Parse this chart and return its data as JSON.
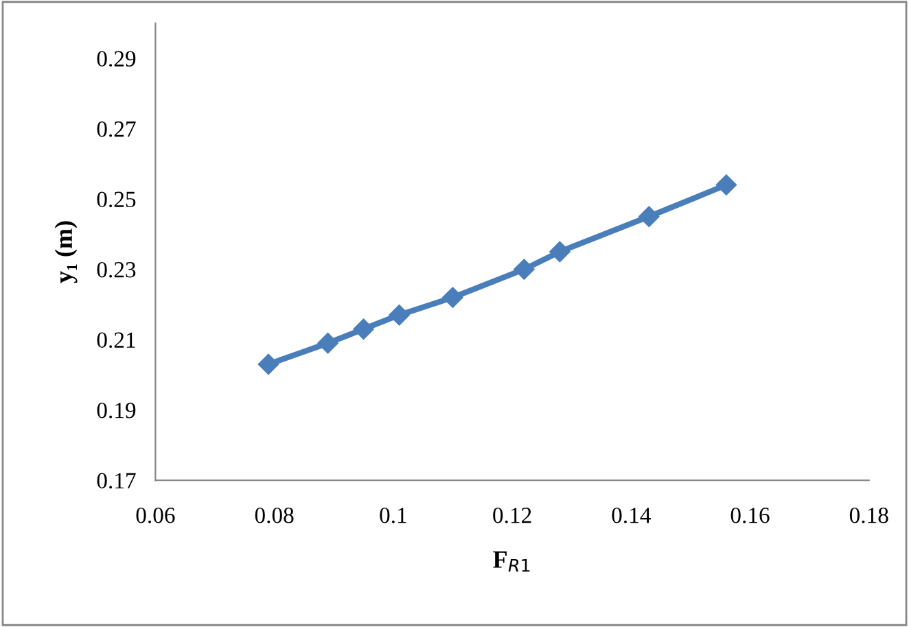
{
  "chart_data": {
    "type": "line",
    "xlabel": "F$_{R1}$",
    "ylabel": "y₁ (m)",
    "x": [
      0.079,
      0.089,
      0.095,
      0.101,
      0.11,
      0.122,
      0.128,
      0.143,
      0.156
    ],
    "series": [
      {
        "color": "#4a7ebb",
        "values": [
          0.203,
          0.209,
          0.213,
          0.217,
          0.222,
          0.23,
          0.235,
          0.245,
          0.254
        ]
      }
    ],
    "xlim": [
      0.06,
      0.18
    ],
    "xticks": [
      0.06,
      0.08,
      0.1,
      0.12,
      0.14,
      0.16,
      0.18
    ],
    "ylim": [
      0.17,
      0.3
    ],
    "yticks": [
      0.17,
      0.19,
      0.21,
      0.23,
      0.25,
      0.27,
      0.29
    ],
    "marker": "diamond",
    "line_style": "solid",
    "grid": false,
    "legend": false
  }
}
